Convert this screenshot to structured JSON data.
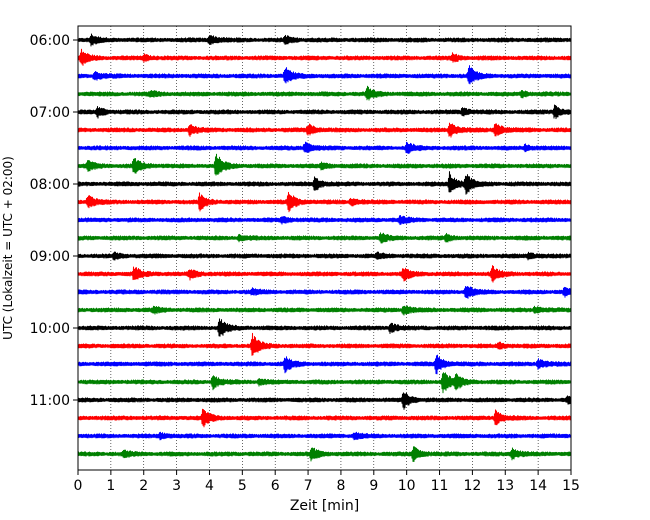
{
  "chart_data": {
    "type": "line",
    "title": "",
    "xlabel": "Zeit  [min]",
    "ylabel": "UTC (Lokalzeit = UTC + 02:00)",
    "xlim": [
      0,
      15
    ],
    "x_ticks": [
      "0",
      "1",
      "2",
      "3",
      "4",
      "5",
      "6",
      "7",
      "8",
      "9",
      "10",
      "11",
      "12",
      "13",
      "14",
      "15"
    ],
    "y_ticks": [
      "06:00",
      "07:00",
      "08:00",
      "09:00",
      "10:00",
      "11:00"
    ],
    "grid": "vertical dotted",
    "trace_interval_min": 15,
    "trace_colors": [
      "#000000",
      "#ff0000",
      "#0000ff",
      "#008000"
    ],
    "traces": [
      {
        "start": "06:00",
        "events": [
          [
            0.4,
            0.5
          ],
          [
            4.0,
            0.6
          ],
          [
            6.3,
            0.4
          ]
        ]
      },
      {
        "start": "06:15",
        "events": [
          [
            0.1,
            0.8
          ],
          [
            2.0,
            0.3
          ],
          [
            11.4,
            0.4
          ]
        ]
      },
      {
        "start": "06:30",
        "events": [
          [
            0.5,
            0.5
          ],
          [
            6.3,
            0.9
          ],
          [
            11.9,
            1.0
          ]
        ]
      },
      {
        "start": "06:45",
        "events": [
          [
            2.2,
            0.3
          ],
          [
            8.8,
            0.7
          ],
          [
            13.5,
            0.3
          ]
        ]
      },
      {
        "start": "07:00",
        "events": [
          [
            0.6,
            0.5
          ],
          [
            11.7,
            0.4
          ],
          [
            14.5,
            0.7
          ]
        ]
      },
      {
        "start": "07:15",
        "events": [
          [
            3.4,
            0.6
          ],
          [
            7.0,
            0.6
          ],
          [
            11.3,
            0.9
          ],
          [
            12.7,
            0.8
          ]
        ]
      },
      {
        "start": "07:30",
        "events": [
          [
            6.9,
            0.6
          ],
          [
            10.0,
            0.6
          ],
          [
            13.6,
            0.3
          ]
        ]
      },
      {
        "start": "07:45",
        "events": [
          [
            0.3,
            0.5
          ],
          [
            1.7,
            0.9
          ],
          [
            4.2,
            1.4
          ],
          [
            7.4,
            0.3
          ]
        ]
      },
      {
        "start": "08:00",
        "events": [
          [
            7.2,
            0.7
          ],
          [
            11.3,
            1.2
          ],
          [
            11.8,
            1.1
          ]
        ]
      },
      {
        "start": "08:15",
        "events": [
          [
            0.3,
            0.7
          ],
          [
            3.7,
            0.9
          ],
          [
            6.4,
            1.1
          ],
          [
            8.3,
            0.4
          ]
        ]
      },
      {
        "start": "08:30",
        "events": [
          [
            6.2,
            0.3
          ],
          [
            9.8,
            0.4
          ]
        ]
      },
      {
        "start": "08:45",
        "events": [
          [
            4.9,
            0.3
          ],
          [
            9.2,
            0.5
          ],
          [
            11.2,
            0.3
          ]
        ]
      },
      {
        "start": "09:00",
        "events": [
          [
            1.1,
            0.3
          ],
          [
            9.1,
            0.3
          ],
          [
            13.7,
            0.3
          ]
        ]
      },
      {
        "start": "09:15",
        "events": [
          [
            1.7,
            0.8
          ],
          [
            3.4,
            0.5
          ],
          [
            9.9,
            0.7
          ],
          [
            12.6,
            0.9
          ]
        ]
      },
      {
        "start": "09:30",
        "events": [
          [
            5.3,
            0.3
          ],
          [
            11.8,
            0.8
          ],
          [
            14.8,
            0.4
          ]
        ]
      },
      {
        "start": "09:45",
        "events": [
          [
            2.3,
            0.3
          ],
          [
            9.9,
            0.5
          ],
          [
            13.9,
            0.3
          ]
        ]
      },
      {
        "start": "10:00",
        "events": [
          [
            4.3,
            1.1
          ],
          [
            9.5,
            0.5
          ]
        ]
      },
      {
        "start": "10:15",
        "events": [
          [
            5.3,
            1.3
          ],
          [
            12.8,
            0.3
          ]
        ]
      },
      {
        "start": "10:30",
        "events": [
          [
            6.3,
            0.8
          ],
          [
            10.9,
            1.0
          ],
          [
            14.0,
            0.5
          ]
        ]
      },
      {
        "start": "10:45",
        "events": [
          [
            4.1,
            0.7
          ],
          [
            5.5,
            0.3
          ],
          [
            11.1,
            1.4
          ],
          [
            11.5,
            0.7
          ]
        ]
      },
      {
        "start": "11:00",
        "events": [
          [
            9.9,
            0.9
          ],
          [
            14.9,
            0.3
          ]
        ]
      },
      {
        "start": "11:15",
        "events": [
          [
            3.8,
            1.0
          ],
          [
            12.7,
            0.8
          ]
        ]
      },
      {
        "start": "11:30",
        "events": [
          [
            2.5,
            0.3
          ],
          [
            8.4,
            0.3
          ]
        ]
      },
      {
        "start": "11:45",
        "events": [
          [
            1.4,
            0.3
          ],
          [
            7.1,
            0.7
          ],
          [
            10.2,
            0.8
          ],
          [
            13.2,
            0.6
          ]
        ]
      }
    ]
  }
}
